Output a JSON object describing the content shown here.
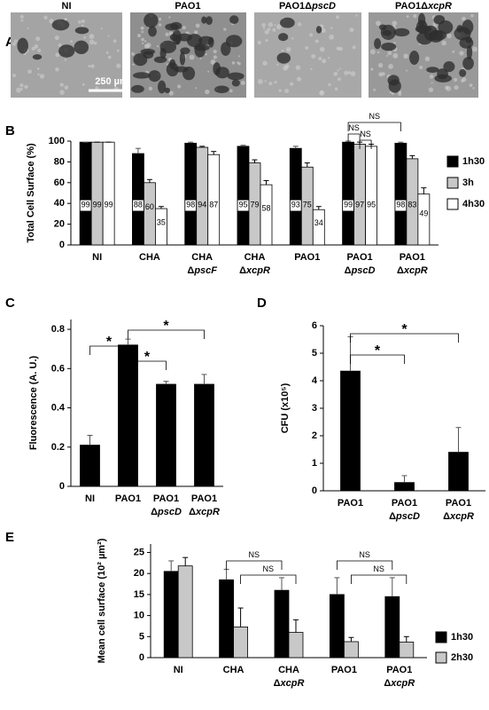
{
  "panel_a": {
    "panel": "A",
    "labels": [
      "NI",
      "PAO1",
      "PAO1ΔpscD",
      "PAO1ΔxcpR"
    ],
    "scale_bar": "250 µm"
  },
  "chart_data": [
    {
      "type": "bar",
      "panel": "B",
      "y_label": "Total Cell Surface (%)",
      "categories": [
        "NI",
        "CHA",
        "CHA\nΔpscF",
        "CHA\nΔxcpR",
        "PAO1",
        "PAO1\nΔpscD",
        "PAO1\nΔxcpR"
      ],
      "series": [
        {
          "name": "1h30",
          "color": "#000000",
          "values": [
            99,
            88,
            98,
            95,
            93,
            99,
            98
          ],
          "errors": [
            0,
            5,
            1,
            1,
            2,
            1,
            1
          ]
        },
        {
          "name": "3h",
          "color": "#c8c8c8",
          "values": [
            99,
            60,
            94,
            79,
            75,
            97,
            83
          ],
          "errors": [
            0,
            3,
            1,
            3,
            4,
            2,
            3
          ]
        },
        {
          "name": "4h30",
          "color": "#ffffff",
          "values": [
            99,
            35,
            87,
            58,
            34,
            95,
            49
          ],
          "errors": [
            0,
            2,
            3,
            4,
            3,
            2,
            6
          ]
        }
      ],
      "ylim": [
        0,
        100
      ],
      "yticks": [
        0,
        20,
        40,
        60,
        80,
        100
      ],
      "data_labels": true,
      "legend": "right",
      "annotations": [
        "NS",
        "NS",
        "NS"
      ]
    },
    {
      "type": "bar",
      "panel": "C",
      "y_label": "Fluorescence (A. U.)",
      "categories": [
        "NI",
        "PAO1",
        "PAO1\nΔpscD",
        "PAO1\nΔxcpR"
      ],
      "values": [
        0.21,
        0.72,
        0.52,
        0.52
      ],
      "errors": [
        0.05,
        0.03,
        0.015,
        0.05
      ],
      "color": "#000000",
      "ylim": [
        0,
        0.85
      ],
      "yticks": [
        0,
        0.2,
        0.4,
        0.6,
        0.8
      ],
      "annotations": [
        "*",
        "*",
        "*"
      ]
    },
    {
      "type": "bar",
      "panel": "D",
      "y_label": "CFU (x10⁵)",
      "categories": [
        "PAO1",
        "PAO1\nΔpscD",
        "PAO1\nΔxcpR"
      ],
      "values": [
        4.35,
        0.3,
        1.4
      ],
      "errors": [
        1.25,
        0.25,
        0.9
      ],
      "color": "#000000",
      "ylim": [
        0,
        6
      ],
      "yticks": [
        0,
        1,
        2,
        3,
        4,
        5,
        6
      ],
      "annotations": [
        "*",
        "*"
      ]
    },
    {
      "type": "bar",
      "panel": "E",
      "y_label": "Mean cell surface (10² µm²)",
      "categories": [
        "NI",
        "CHA",
        "CHA\nΔxcpR",
        "PAO1",
        "PAO1\nΔxcpR"
      ],
      "series": [
        {
          "name": "1h30",
          "color": "#000000",
          "values": [
            20.5,
            18.5,
            16,
            15,
            14.5
          ],
          "errors": [
            2.5,
            2.5,
            3,
            4,
            4.5
          ]
        },
        {
          "name": "2h30",
          "color": "#c8c8c8",
          "values": [
            21.8,
            7.3,
            6,
            3.8,
            3.7
          ],
          "errors": [
            2,
            4.5,
            3,
            1,
            1.3
          ]
        }
      ],
      "ylim": [
        0,
        27
      ],
      "yticks": [
        0,
        5,
        10,
        15,
        20,
        25
      ],
      "legend": "right",
      "annotations": [
        "NS",
        "NS",
        "NS",
        "NS"
      ]
    }
  ]
}
